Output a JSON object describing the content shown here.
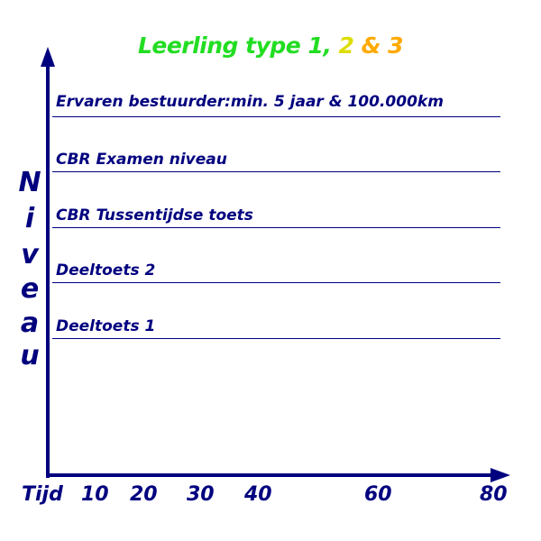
{
  "title": {
    "part1": "Leerling type 1, ",
    "part2": "2",
    "part3": " & 3"
  },
  "y_axis_label_letters": [
    "N",
    "i",
    "v",
    "e",
    "a",
    "u"
  ],
  "levels": [
    "Ervaren bestuurder:min. 5 jaar & 100.000km",
    "CBR Examen niveau",
    "CBR Tussentijdse toets",
    "Deeltoets 2",
    "Deeltoets 1"
  ],
  "x_axis": {
    "label": "Tijd",
    "ticks": [
      "10",
      "20",
      "30",
      "40",
      "60",
      "80"
    ]
  },
  "colors": {
    "axis": "#00007f",
    "title_green": "#22dd22",
    "title_yellow": "#dddd00",
    "title_orange": "#ffaa00"
  }
}
